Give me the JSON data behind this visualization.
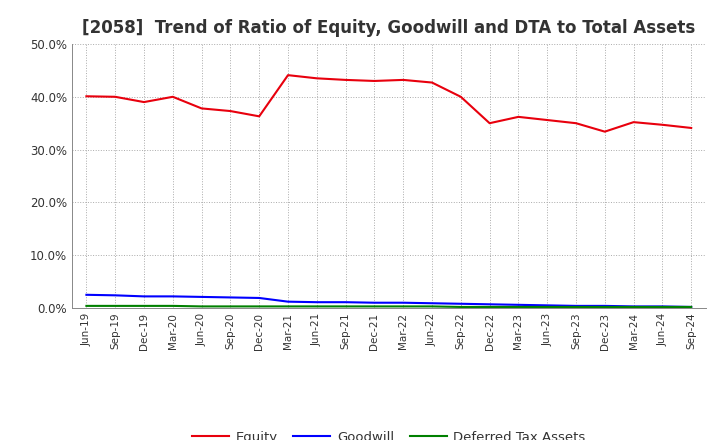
{
  "title": "[2058]  Trend of Ratio of Equity, Goodwill and DTA to Total Assets",
  "x_labels": [
    "Jun-19",
    "Sep-19",
    "Dec-19",
    "Mar-20",
    "Jun-20",
    "Sep-20",
    "Dec-20",
    "Mar-21",
    "Jun-21",
    "Sep-21",
    "Dec-21",
    "Mar-22",
    "Jun-22",
    "Sep-22",
    "Dec-22",
    "Mar-23",
    "Jun-23",
    "Sep-23",
    "Dec-23",
    "Mar-24",
    "Jun-24",
    "Sep-24"
  ],
  "equity": [
    0.401,
    0.4,
    0.39,
    0.4,
    0.378,
    0.373,
    0.363,
    0.441,
    0.435,
    0.432,
    0.43,
    0.432,
    0.427,
    0.4,
    0.35,
    0.362,
    0.356,
    0.35,
    0.334,
    0.352,
    0.347,
    0.341
  ],
  "goodwill": [
    0.025,
    0.024,
    0.022,
    0.022,
    0.021,
    0.02,
    0.019,
    0.012,
    0.011,
    0.011,
    0.01,
    0.01,
    0.009,
    0.008,
    0.007,
    0.006,
    0.005,
    0.004,
    0.004,
    0.003,
    0.003,
    0.002
  ],
  "dta": [
    0.004,
    0.004,
    0.004,
    0.004,
    0.003,
    0.003,
    0.003,
    0.003,
    0.003,
    0.003,
    0.003,
    0.003,
    0.003,
    0.002,
    0.002,
    0.002,
    0.002,
    0.002,
    0.002,
    0.002,
    0.002,
    0.002
  ],
  "equity_color": "#e8000d",
  "goodwill_color": "#0000ff",
  "dta_color": "#008000",
  "ylim": [
    0.0,
    0.5
  ],
  "yticks": [
    0.0,
    0.1,
    0.2,
    0.3,
    0.4,
    0.5
  ],
  "background_color": "#ffffff",
  "plot_bg_color": "#ffffff",
  "grid_color": "#aaaaaa",
  "title_fontsize": 12,
  "legend_labels": [
    "Equity",
    "Goodwill",
    "Deferred Tax Assets"
  ]
}
